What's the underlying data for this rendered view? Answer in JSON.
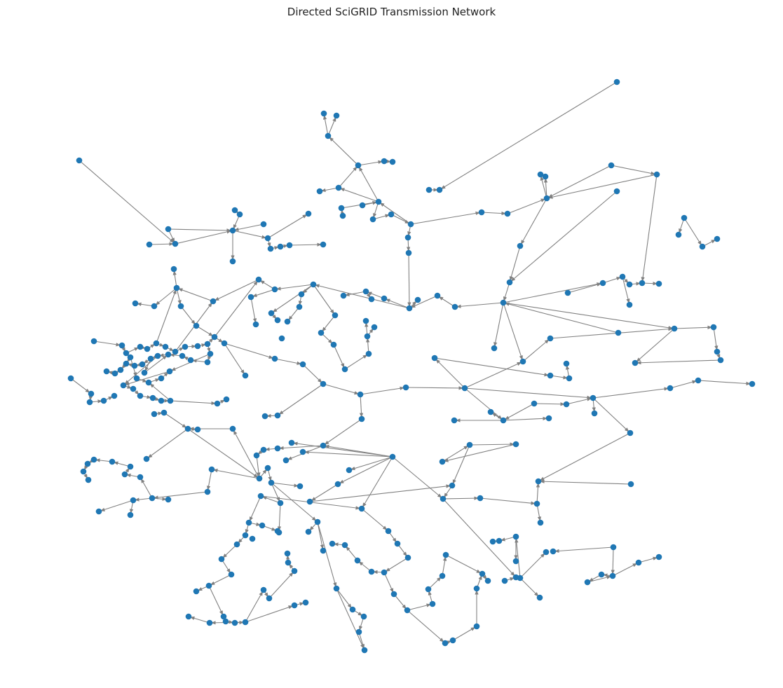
{
  "title": "Directed SciGRID Transmission Network",
  "style": {
    "node_color": "#1f77b4",
    "edge_color": "#808080",
    "background": "#ffffff"
  }
}
